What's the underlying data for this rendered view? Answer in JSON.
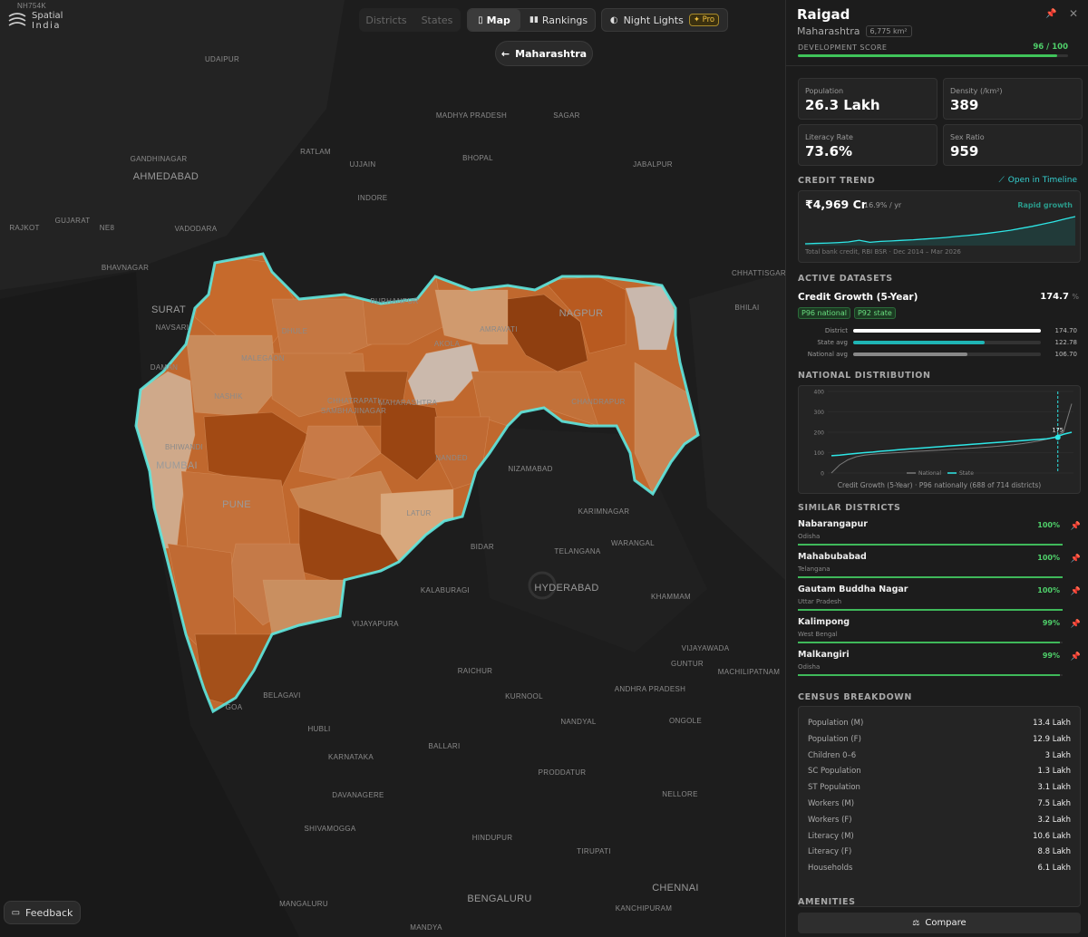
{
  "header": {
    "brand_line1": "Spatial",
    "brand_line2": "India",
    "tabs": [
      "Districts",
      "States",
      "Map",
      "Rankings",
      "Night Lights"
    ],
    "pro": "Pro",
    "back": "Maharashtra"
  },
  "map": {
    "labels": [
      "NH754K",
      "UDAIPUR",
      "MADHYA PRADESH",
      "SAGAR",
      "GANDHINAGAR",
      "RATLAM",
      "UJJAIN",
      "BHOPAL",
      "JABALPUR",
      "AHMEDABAD",
      "INDORE",
      "GUJARAT",
      "RAJKOT",
      "NE8",
      "VADODARA",
      "CHHATTISGARH",
      "BHAVNAGAR",
      "SURAT",
      "BHILAI",
      "NAVSARI",
      "DAMAN",
      "BURHANPUR",
      "DHULE",
      "MALEGAON",
      "NASHIK",
      "AKOLA",
      "AMRAVATI",
      "NAGPUR",
      "CHANDRAPUR",
      "CHHATRAPATI",
      "SAMBHAJINAGAR",
      "MAHARASHTRA",
      "BHIWANDI",
      "MUMBAI",
      "PUNE",
      "NANDED",
      "NIZAMABAD",
      "LATUR",
      "KARIMNAGAR",
      "TELANGANA",
      "WARANGAL",
      "BIDAR",
      "HYDERABAD",
      "KHAMMAM",
      "KALABURAGI",
      "VIJAYAPURA",
      "RAICHUR",
      "VIJAYAWADA",
      "GUNTUR",
      "MACHILIPATNAM",
      "BELAGAVI",
      "KURNOOL",
      "ANDHRA PRADESH",
      "GOA",
      "HUBLI",
      "NANDYAL",
      "ONGOLE",
      "KARNATAKA",
      "BALLARI",
      "PRODDATUR",
      "DAVANAGERE",
      "NELLORE",
      "SHIVAMOGGA",
      "HINDUPUR",
      "TIRUPATI",
      "CHENNAI",
      "MANGALURU",
      "BENGALURU",
      "KANCHIPURAM",
      "MANDYA"
    ]
  },
  "feedback": "Feedback",
  "panel": {
    "district": "Raigad",
    "state": "Maharashtra",
    "area": "6,775 km²",
    "dev_score": {
      "label": "DEVELOPMENT SCORE",
      "value": 96,
      "max": 100,
      "value_label": "96 / 100"
    },
    "stats": [
      {
        "label": "Population",
        "value": "26.3 Lakh"
      },
      {
        "label": "Density (/km²)",
        "value": "389"
      },
      {
        "label": "Literacy Rate",
        "value": "73.6%"
      },
      {
        "label": "Sex Ratio",
        "value": "959"
      }
    ],
    "credit_trend": {
      "heading": "CREDIT TREND",
      "link": "Open in Timeline",
      "amount": "₹4,969 Cr",
      "growth": "16.9% / yr",
      "tag": "Rapid growth",
      "source": "Total bank credit, RBI BSR · Dec 2014 – Mar 2026",
      "type": "line",
      "color": "#2ee6e6",
      "values": [
        1450,
        1500,
        1540,
        1600,
        1680,
        1900,
        1640,
        1760,
        1820,
        1900,
        1960,
        2060,
        2150,
        2260,
        2400,
        2520,
        2660,
        2820,
        3000,
        3200,
        3450,
        3700,
        4000,
        4300,
        4650,
        4969
      ]
    },
    "active": {
      "heading": "ACTIVE DATASETS",
      "name": "Credit Growth (5-Year)",
      "value": 174.7,
      "unit": "%",
      "badges": [
        "P96 national",
        "P92 state"
      ],
      "bars": {
        "type": "bar",
        "categories": [
          "District",
          "State avg",
          "National avg"
        ],
        "values": [
          174.7,
          122.78,
          106.7
        ],
        "value_labels": [
          "174.70",
          "122.78",
          "106.70"
        ],
        "colors": [
          "#ffffff",
          "#1fb5b5",
          "#888888"
        ]
      }
    },
    "distribution": {
      "heading": "NATIONAL DISTRIBUTION",
      "type": "line",
      "ylim": [
        0,
        400
      ],
      "yticks": [
        0,
        100,
        200,
        300,
        400
      ],
      "series": [
        {
          "name": "National",
          "color": "#7a7a7a",
          "values": [
            0,
            40,
            65,
            80,
            88,
            92,
            95,
            98,
            100,
            103,
            106,
            108,
            110,
            112,
            115,
            118,
            120,
            122,
            125,
            128,
            131,
            135,
            139,
            144,
            150,
            157,
            166,
            178,
            200,
            340
          ]
        },
        {
          "name": "State",
          "color": "#2ee6e6",
          "values": [
            85,
            88,
            92,
            96,
            100,
            103,
            107,
            110,
            114,
            117,
            120,
            123,
            126,
            129,
            132,
            135,
            138,
            141,
            144,
            147,
            150,
            153,
            156,
            159,
            162,
            165,
            168,
            175,
            190,
            200
          ]
        }
      ],
      "marker": 175,
      "caption": "Credit Growth (5-Year) · P96 nationally (688 of 714 districts)"
    },
    "similar": {
      "heading": "SIMILAR DISTRICTS",
      "items": [
        {
          "name": "Nabarangapur",
          "state": "Odisha",
          "value": 100,
          "value_label": "100%"
        },
        {
          "name": "Mahabubabad",
          "state": "Telangana",
          "value": 100,
          "value_label": "100%"
        },
        {
          "name": "Gautam Buddha Nagar",
          "state": "Uttar Pradesh",
          "value": 100,
          "value_label": "100%"
        },
        {
          "name": "Kalimpong",
          "state": "West Bengal",
          "value": 99,
          "value_label": "99%"
        },
        {
          "name": "Malkangiri",
          "state": "Odisha",
          "value": 99,
          "value_label": "99%"
        }
      ]
    },
    "census": {
      "heading": "CENSUS BREAKDOWN",
      "rows": [
        [
          "Population (M)",
          "13.4 Lakh"
        ],
        [
          "Population (F)",
          "12.9 Lakh"
        ],
        [
          "Children 0–6",
          "3 Lakh"
        ],
        [
          "SC Population",
          "1.3 Lakh"
        ],
        [
          "ST Population",
          "3.1 Lakh"
        ],
        [
          "Workers (M)",
          "7.5 Lakh"
        ],
        [
          "Workers (F)",
          "3.2 Lakh"
        ],
        [
          "Literacy (M)",
          "10.6 Lakh"
        ],
        [
          "Literacy (F)",
          "8.8 Lakh"
        ],
        [
          "Households",
          "6.1 Lakh"
        ]
      ]
    },
    "amenities": "AMENITIES",
    "compare": "Compare"
  }
}
